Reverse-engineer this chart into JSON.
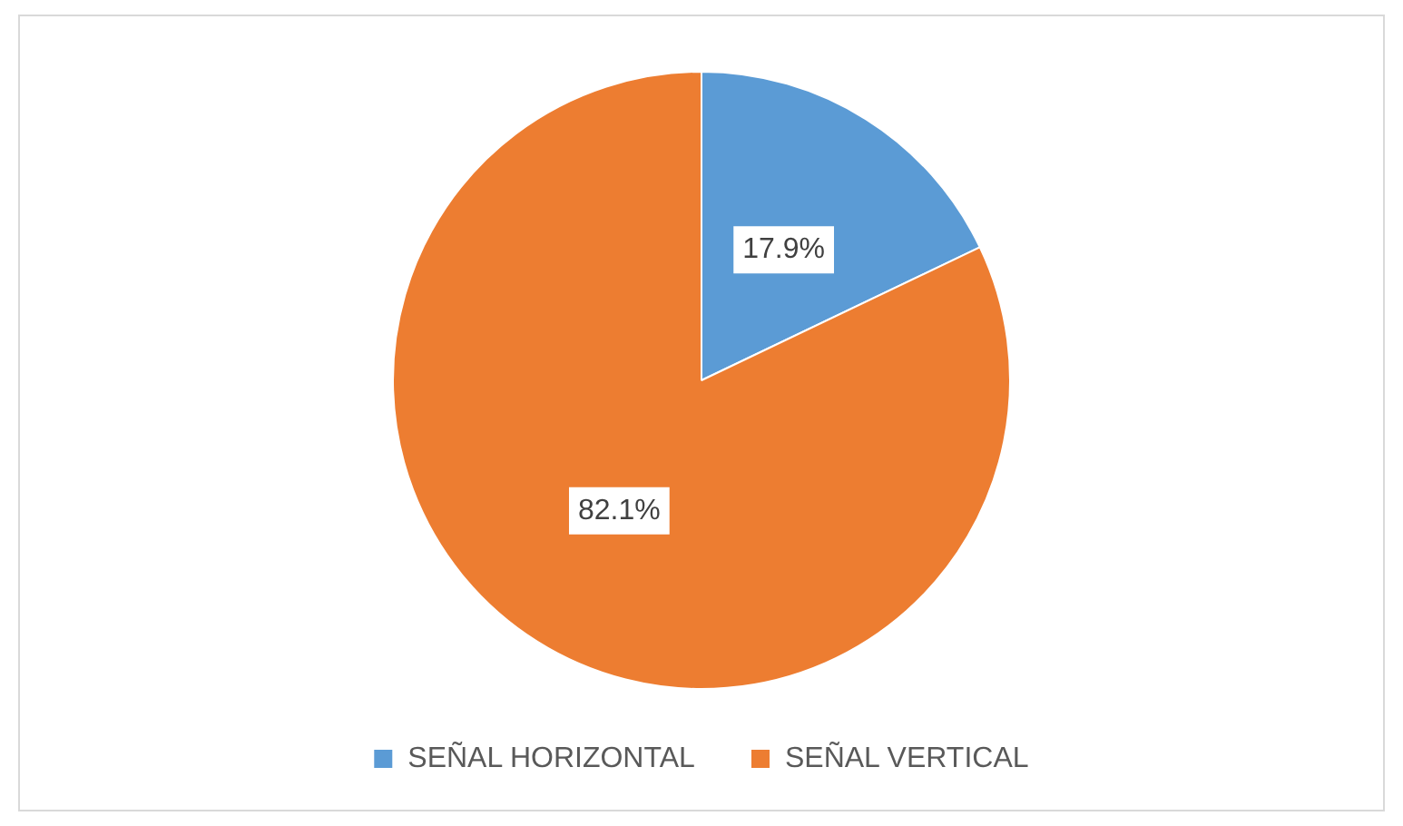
{
  "chart_data": {
    "type": "pie",
    "categories": [
      "SEÑAL HORIZONTAL",
      "SEÑAL VERTICAL"
    ],
    "values": [
      17.9,
      82.1
    ],
    "colors": [
      "#5b9bd5",
      "#ed7d31"
    ],
    "value_labels": [
      "17.9%",
      "82.1%"
    ],
    "legend": "bottom"
  }
}
